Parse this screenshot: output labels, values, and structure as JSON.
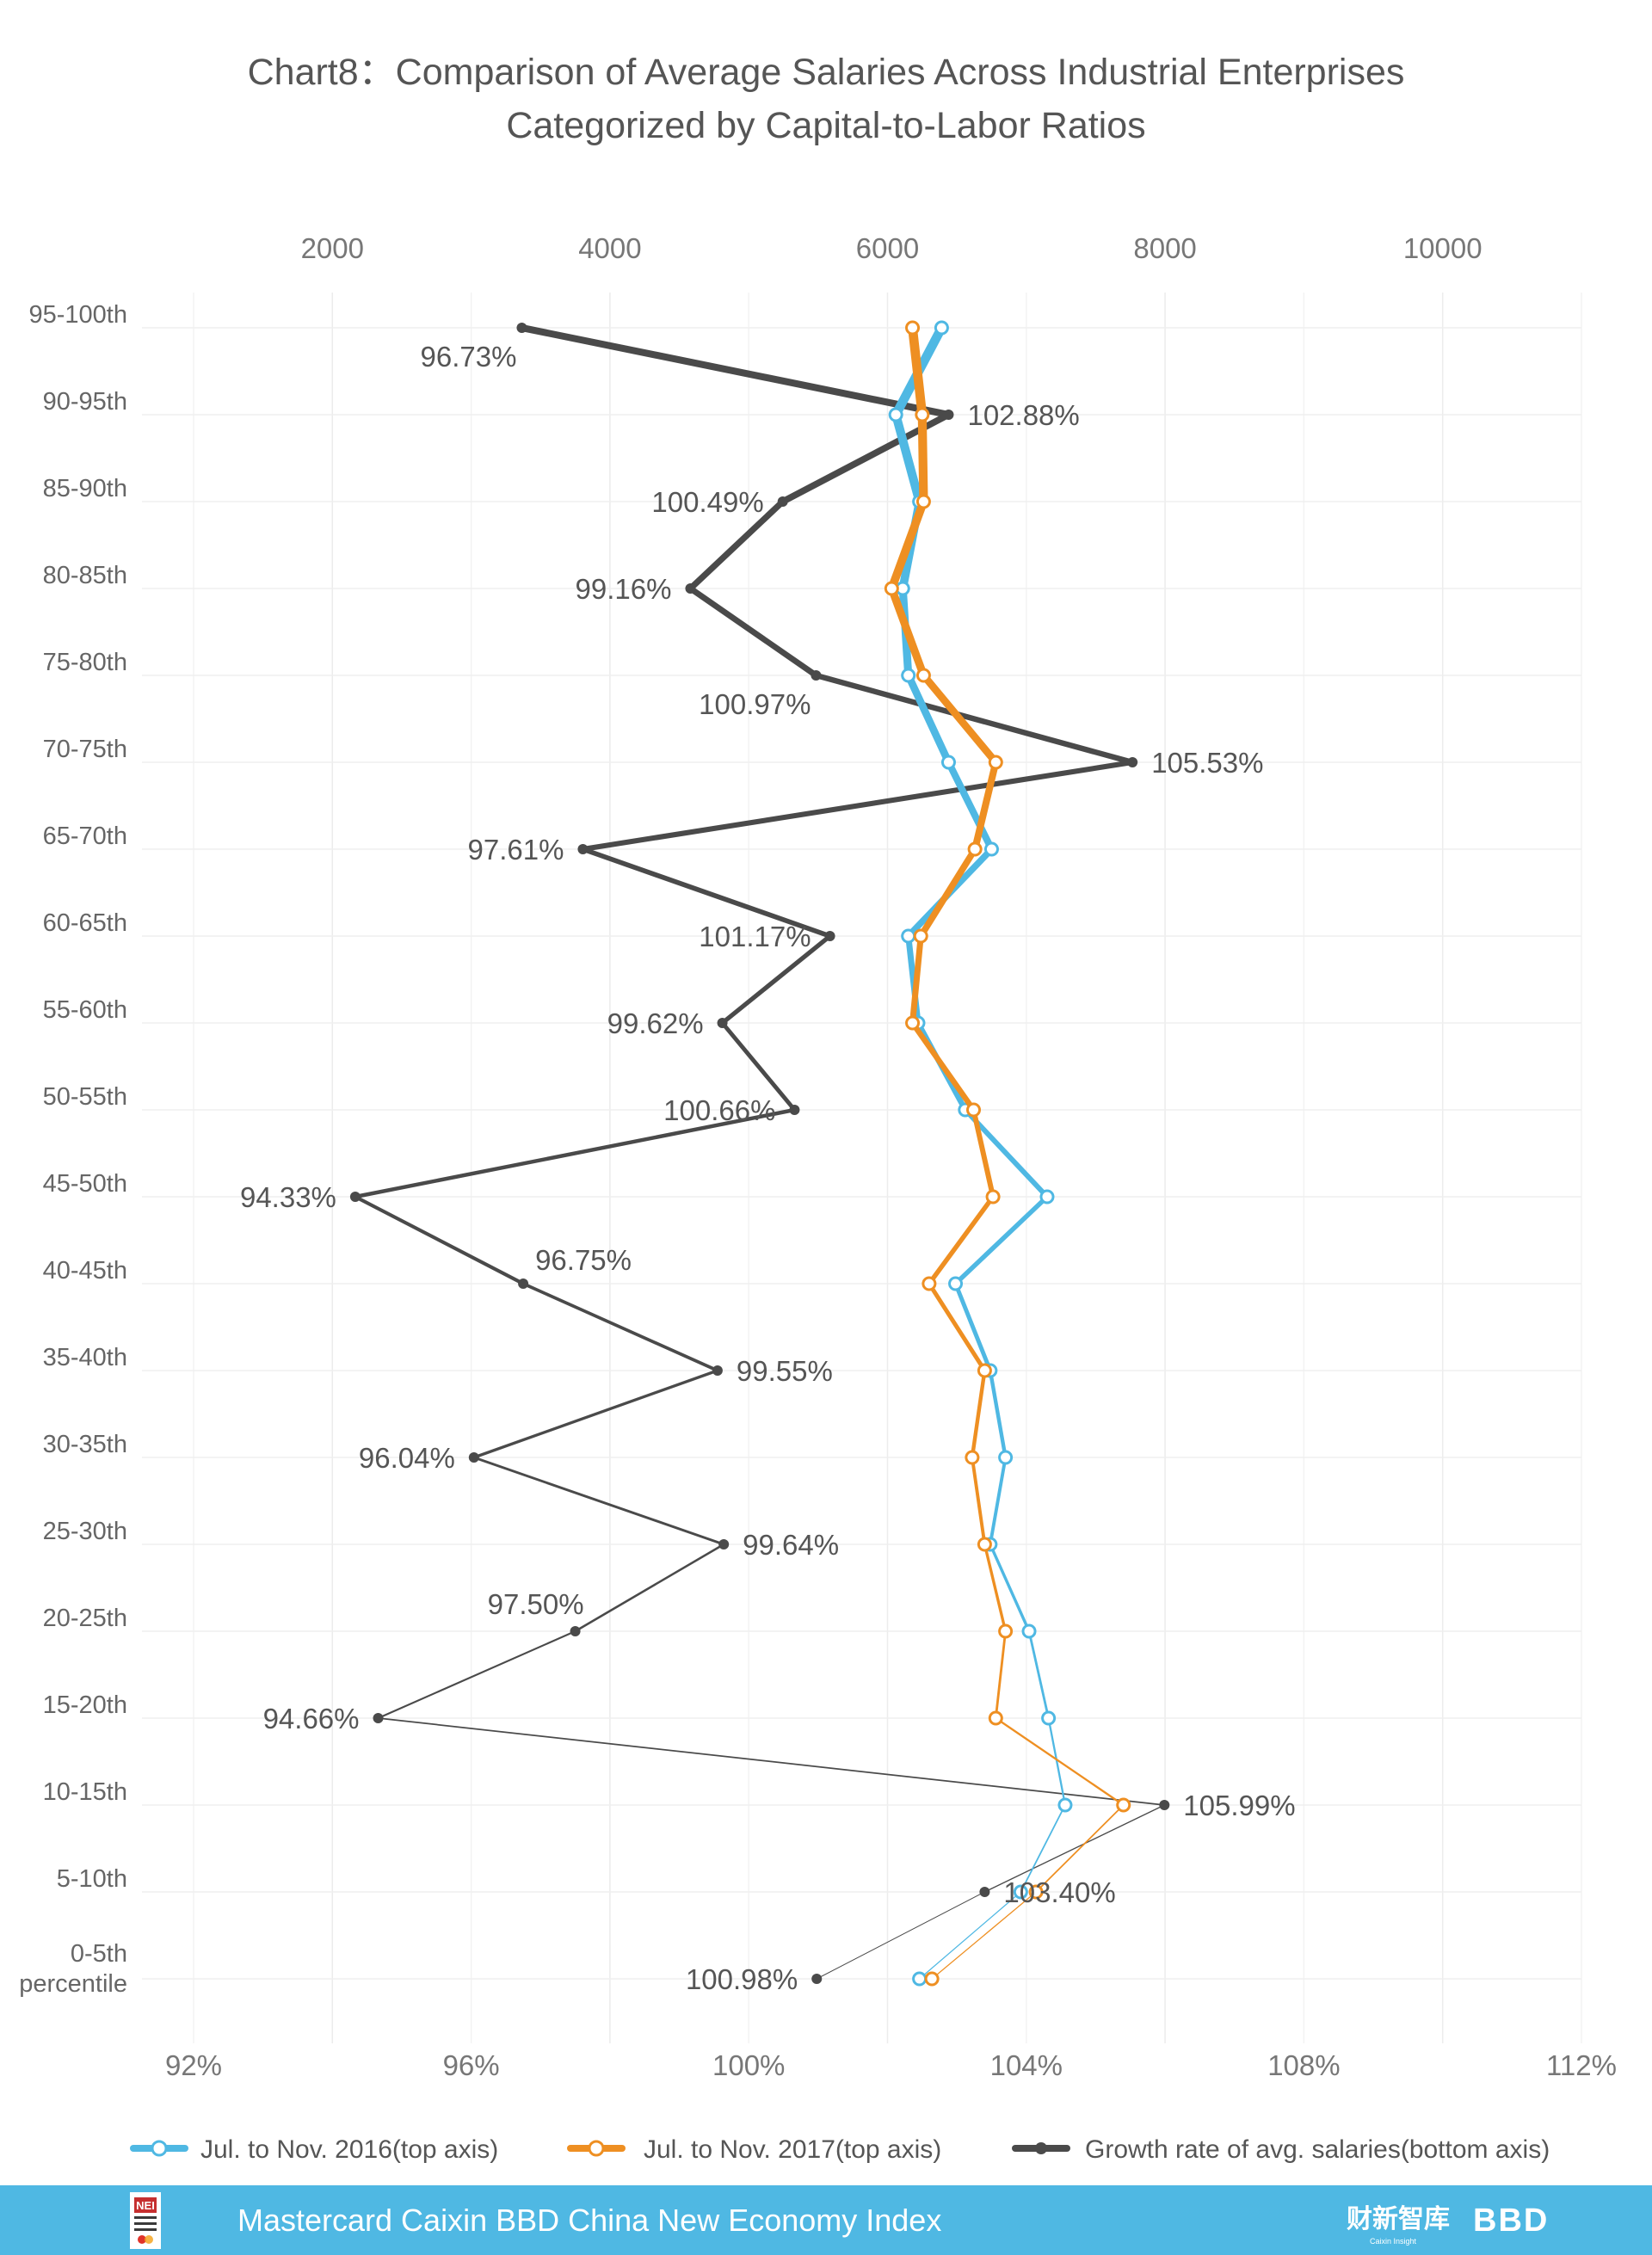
{
  "chart_data": {
    "type": "line",
    "title": [
      "Chart8：Comparison of Average Salaries Across Industrial Enterprises",
      "Categorized by Capital-to-Labor Ratios"
    ],
    "orientation": "horizontal-categories",
    "categories": [
      "95-100th",
      "90-95th",
      "85-90th",
      "80-85th",
      "75-80th",
      "70-75th",
      "65-70th",
      "60-65th",
      "55-60th",
      "50-55th",
      "45-50th",
      "40-45th",
      "35-40th",
      "30-35th",
      "25-30th",
      "20-25th",
      "15-20th",
      "10-15th",
      "5-10th",
      "0-5th percentile"
    ],
    "category_label_lines": [
      [
        "95-100th"
      ],
      [
        "90-95th"
      ],
      [
        "85-90th"
      ],
      [
        "80-85th"
      ],
      [
        "75-80th"
      ],
      [
        "70-75th"
      ],
      [
        "65-70th"
      ],
      [
        "60-65th"
      ],
      [
        "55-60th"
      ],
      [
        "50-55th"
      ],
      [
        "45-50th"
      ],
      [
        "40-45th"
      ],
      [
        "35-40th"
      ],
      [
        "30-35th"
      ],
      [
        "25-30th"
      ],
      [
        "20-25th"
      ],
      [
        "15-20th"
      ],
      [
        "10-15th"
      ],
      [
        "5-10th"
      ],
      [
        "0-5th",
        "percentile"
      ]
    ],
    "top_axis": {
      "ticks": [
        "2000",
        "4000",
        "6000",
        "8000",
        "10000"
      ],
      "range": [
        1000,
        11000
      ]
    },
    "bottom_axis": {
      "ticks": [
        "92%",
        "96%",
        "100%",
        "104%",
        "108%",
        "112%"
      ],
      "range": [
        92,
        112
      ]
    },
    "series": [
      {
        "name": "Jul. to Nov. 2016(top axis)",
        "axis": "top",
        "color": "#4fb8e3",
        "values": [
          6390,
          6060,
          6230,
          6110,
          6150,
          6440,
          6750,
          6150,
          6220,
          6560,
          7150,
          6490,
          6740,
          6850,
          6740,
          7020,
          7160,
          7280,
          6960,
          6230
        ]
      },
      {
        "name": "Jul. to Nov. 2017(top axis)",
        "axis": "top",
        "color": "#ee8f22",
        "values": [
          6180,
          6250,
          6260,
          6030,
          6260,
          6780,
          6630,
          6240,
          6180,
          6620,
          6760,
          6300,
          6700,
          6610,
          6700,
          6850,
          6780,
          7700,
          7070,
          6320
        ]
      },
      {
        "name": "Growth rate of avg. salaries(bottom axis)",
        "axis": "bottom",
        "color": "#4a4a4a",
        "values": [
          96.73,
          102.88,
          100.49,
          99.16,
          100.97,
          105.53,
          97.61,
          101.17,
          99.62,
          100.66,
          94.33,
          96.75,
          99.55,
          96.04,
          99.64,
          97.5,
          94.66,
          105.99,
          103.4,
          100.98
        ],
        "labels": [
          "96.73%",
          "102.88%",
          "100.49%",
          "99.16%",
          "100.97%",
          "105.53%",
          "97.61%",
          "101.17%",
          "99.62%",
          "100.66%",
          "94.33%",
          "96.75%",
          "99.55%",
          "96.04%",
          "99.64%",
          "97.50%",
          "94.66%",
          "105.99%",
          "103.40%",
          "100.98%"
        ]
      }
    ],
    "grid": true,
    "legend_position": "bottom"
  },
  "footer": {
    "banner_text": "Mastercard Caixin BBD China New Economy Index",
    "left_logo_text": "NEI",
    "right_logo_text": "财新智库",
    "right_logo_subtext": "Caixin Insight",
    "right_logo2_text": "BBD"
  },
  "colors": {
    "footer_bg": "#4fb8e3",
    "grid": "#eeeeee"
  }
}
